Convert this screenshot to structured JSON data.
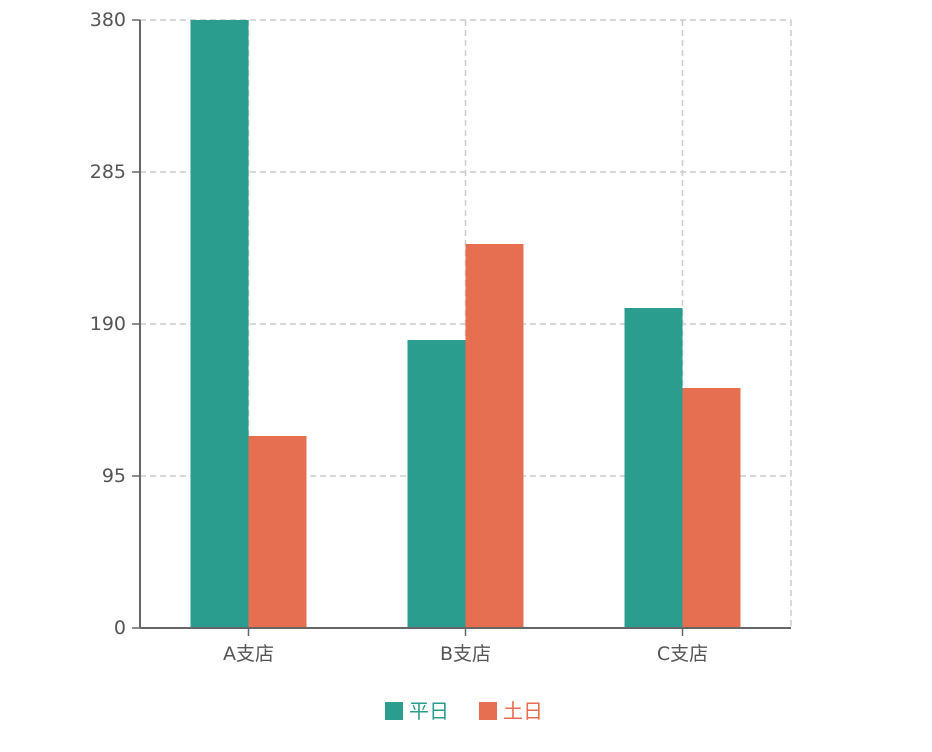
{
  "chart_data": {
    "type": "bar",
    "categories": [
      "A支店",
      "B支店",
      "C支店"
    ],
    "series": [
      {
        "name": "平日",
        "values": [
          380,
          180,
          200
        ],
        "color": "#2a9d8f"
      },
      {
        "name": "土日",
        "values": [
          120,
          240,
          150
        ],
        "color": "#e76f51"
      }
    ],
    "ylim": [
      0,
      380
    ],
    "yticks": [
      0,
      95,
      190,
      285,
      380
    ],
    "grid": true,
    "legend_position": "bottom-center",
    "axis_color": "#666666",
    "grid_color": "#cccccc"
  }
}
